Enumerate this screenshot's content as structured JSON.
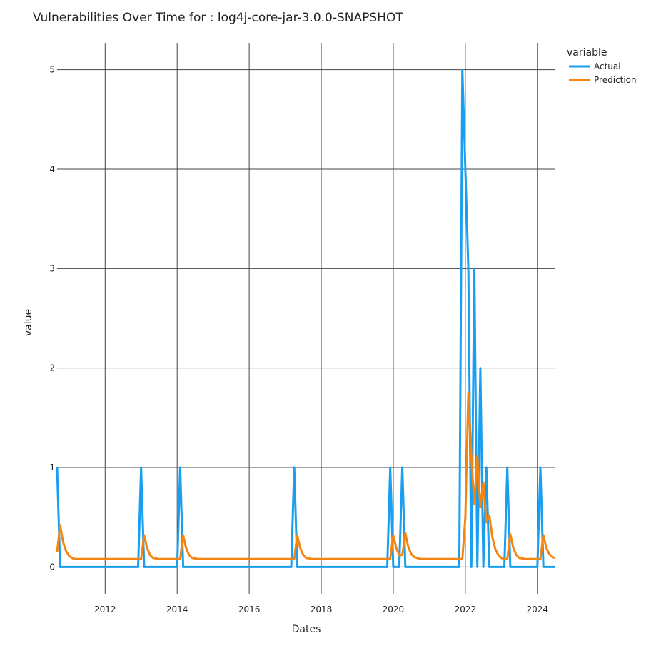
{
  "chart_data": {
    "type": "line",
    "title": "Vulnerabilities Over Time for : log4j-core-jar-3.0.0-SNAPSHOT",
    "xlabel": "Dates",
    "ylabel": "value",
    "x_ticks": [
      "2012",
      "2014",
      "2016",
      "2018",
      "2020",
      "2022",
      "2024"
    ],
    "y_ticks": [
      "0",
      "1",
      "2",
      "3",
      "4",
      "5"
    ],
    "xlim": [
      "2010-09",
      "2024-07"
    ],
    "ylim": [
      -0.27,
      5.27
    ],
    "grid": true,
    "legend": {
      "title": "variable",
      "placement": "top-right"
    },
    "series": [
      {
        "name": "Actual",
        "color": "#1a9ff0",
        "points": [
          [
            "2010-09",
            1
          ],
          [
            "2010-10",
            0
          ],
          [
            "2012-12",
            0
          ],
          [
            "2013-01",
            1
          ],
          [
            "2013-02",
            0
          ],
          [
            "2014-01",
            0
          ],
          [
            "2014-02",
            1
          ],
          [
            "2014-03",
            0
          ],
          [
            "2017-03",
            0
          ],
          [
            "2017-04",
            1
          ],
          [
            "2017-05",
            0
          ],
          [
            "2019-11",
            0
          ],
          [
            "2019-12",
            1
          ],
          [
            "2020-01",
            0
          ],
          [
            "2020-03",
            0
          ],
          [
            "2020-04",
            1
          ],
          [
            "2020-05",
            0
          ],
          [
            "2021-11",
            0
          ],
          [
            "2021-12",
            5
          ],
          [
            "2022-01",
            4
          ],
          [
            "2022-02",
            3
          ],
          [
            "2022-03",
            0
          ],
          [
            "2022-04",
            3
          ],
          [
            "2022-05",
            0
          ],
          [
            "2022-06",
            2
          ],
          [
            "2022-07",
            0
          ],
          [
            "2022-08",
            1
          ],
          [
            "2022-09",
            0
          ],
          [
            "2023-02",
            0
          ],
          [
            "2023-03",
            1
          ],
          [
            "2023-04",
            0
          ],
          [
            "2024-01",
            0
          ],
          [
            "2024-02",
            1
          ],
          [
            "2024-03",
            0
          ],
          [
            "2024-07",
            0
          ]
        ]
      },
      {
        "name": "Prediction",
        "color": "#f5850f",
        "points": [
          [
            "2010-09",
            0.15
          ],
          [
            "2010-10",
            0.42
          ],
          [
            "2010-11",
            0.25
          ],
          [
            "2010-12",
            0.16
          ],
          [
            "2011-01",
            0.11
          ],
          [
            "2011-02",
            0.09
          ],
          [
            "2011-03",
            0.08
          ],
          [
            "2012-12",
            0.08
          ],
          [
            "2013-01",
            0.08
          ],
          [
            "2013-02",
            0.32
          ],
          [
            "2013-03",
            0.19
          ],
          [
            "2013-04",
            0.12
          ],
          [
            "2013-05",
            0.09
          ],
          [
            "2013-07",
            0.08
          ],
          [
            "2014-02",
            0.08
          ],
          [
            "2014-03",
            0.32
          ],
          [
            "2014-04",
            0.19
          ],
          [
            "2014-05",
            0.12
          ],
          [
            "2014-06",
            0.09
          ],
          [
            "2014-08",
            0.08
          ],
          [
            "2017-04",
            0.08
          ],
          [
            "2017-05",
            0.32
          ],
          [
            "2017-06",
            0.19
          ],
          [
            "2017-07",
            0.12
          ],
          [
            "2017-08",
            0.09
          ],
          [
            "2017-10",
            0.08
          ],
          [
            "2019-12",
            0.08
          ],
          [
            "2020-01",
            0.32
          ],
          [
            "2020-02",
            0.19
          ],
          [
            "2020-03",
            0.12
          ],
          [
            "2020-04",
            0.12
          ],
          [
            "2020-05",
            0.34
          ],
          [
            "2020-06",
            0.2
          ],
          [
            "2020-07",
            0.13
          ],
          [
            "2020-08",
            0.1
          ],
          [
            "2020-10",
            0.08
          ],
          [
            "2021-12",
            0.08
          ],
          [
            "2022-01",
            0.5
          ],
          [
            "2022-02",
            1.75
          ],
          [
            "2022-03",
            1.1
          ],
          [
            "2022-04",
            0.63
          ],
          [
            "2022-05",
            1.12
          ],
          [
            "2022-06",
            0.6
          ],
          [
            "2022-07",
            0.85
          ],
          [
            "2022-08",
            0.45
          ],
          [
            "2022-09",
            0.52
          ],
          [
            "2022-10",
            0.3
          ],
          [
            "2022-11",
            0.18
          ],
          [
            "2022-12",
            0.12
          ],
          [
            "2023-01",
            0.09
          ],
          [
            "2023-02",
            0.08
          ],
          [
            "2023-03",
            0.08
          ],
          [
            "2023-04",
            0.33
          ],
          [
            "2023-05",
            0.19
          ],
          [
            "2023-06",
            0.12
          ],
          [
            "2023-07",
            0.09
          ],
          [
            "2023-09",
            0.08
          ],
          [
            "2024-01",
            0.08
          ],
          [
            "2024-02",
            0.08
          ],
          [
            "2024-03",
            0.32
          ],
          [
            "2024-04",
            0.19
          ],
          [
            "2024-05",
            0.13
          ],
          [
            "2024-06",
            0.1
          ],
          [
            "2024-07",
            0.09
          ]
        ]
      }
    ]
  }
}
